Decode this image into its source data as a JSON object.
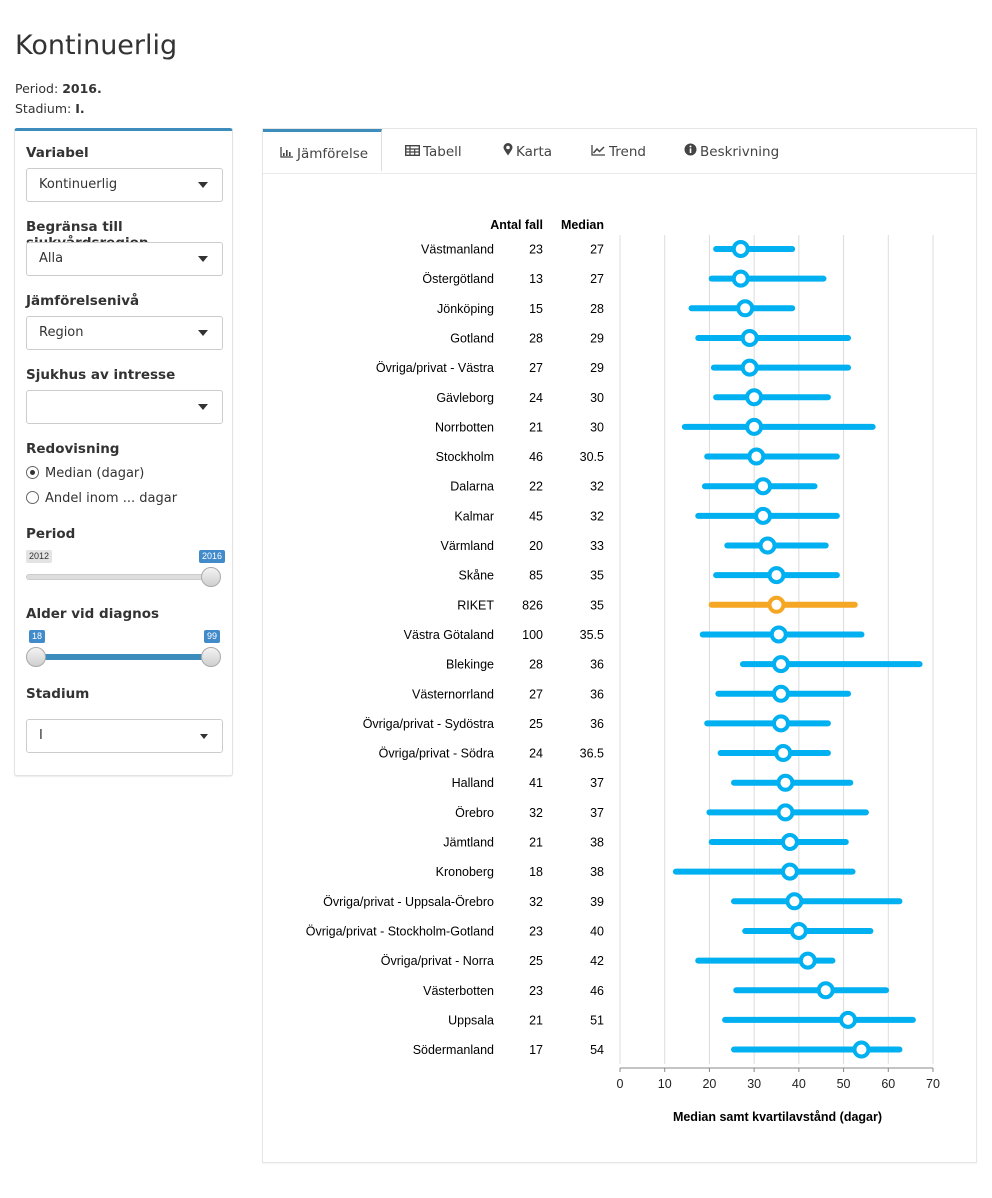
{
  "header": {
    "title": "Kontinuerlig",
    "period_label": "Period:",
    "period_value": "2016.",
    "stadium_label": "Stadium:",
    "stadium_value": "I."
  },
  "sidebar": {
    "variabel_label": "Variabel",
    "variabel_value": "Kontinuerlig",
    "region_label": "Begränsa till sjukvårdsregion",
    "region_value": "Alla",
    "niva_label": "Jämförelsenivå",
    "niva_value": "Region",
    "sjukhus_label": "Sjukhus av intresse",
    "sjukhus_value": "",
    "redovisning_label": "Redovisning",
    "radio_median": "Median (dagar)",
    "radio_andel": "Andel inom ... dagar",
    "period_label": "Period",
    "period_min": "2012",
    "period_max": "2016",
    "period_selected": 2016,
    "alder_label": "Alder vid diagnos",
    "alder_min": "18",
    "alder_max": "99",
    "stadium_label": "Stadium",
    "stadium_value": "I"
  },
  "tabs": [
    {
      "label": "Jämförelse",
      "icon": "bar-chart-icon",
      "glyph": " ▁▃▅"
    },
    {
      "label": "Tabell",
      "icon": "table-icon",
      "glyph": "⊞"
    },
    {
      "label": "Karta",
      "icon": "map-marker-icon",
      "glyph": "◉"
    },
    {
      "label": "Trend",
      "icon": "line-chart-icon",
      "glyph": "↗"
    },
    {
      "label": "Beskrivning",
      "icon": "info-circle-icon",
      "glyph": "ⓘ"
    }
  ],
  "chart_data": {
    "type": "dot-interval",
    "xlabel": "Median samt kvartilavstånd (dagar)",
    "col_header_n": "Antal fall",
    "col_header_median": "Median",
    "xlim": [
      0,
      70
    ],
    "xticks": [
      0,
      10,
      20,
      30,
      40,
      50,
      60,
      70
    ],
    "grid": true,
    "colors": {
      "default": "#00b0f0",
      "highlight": "#f5a623"
    },
    "rows": [
      {
        "label": "Västmanland",
        "n": "23",
        "median": "27",
        "q1": 21.5,
        "q3": 38.5
      },
      {
        "label": "Östergötland",
        "n": "13",
        "median": "27",
        "q1": 20.5,
        "q3": 45.5
      },
      {
        "label": "Jönköping",
        "n": "15",
        "median": "28",
        "q1": 16,
        "q3": 38.5
      },
      {
        "label": "Gotland",
        "n": "28",
        "median": "29",
        "q1": 17.5,
        "q3": 51
      },
      {
        "label": "Övriga/privat - Västra",
        "n": "27",
        "median": "29",
        "q1": 21,
        "q3": 51
      },
      {
        "label": "Gävleborg",
        "n": "24",
        "median": "30",
        "q1": 21.5,
        "q3": 46.5
      },
      {
        "label": "Norrbotten",
        "n": "21",
        "median": "30",
        "q1": 14.5,
        "q3": 56.5
      },
      {
        "label": "Stockholm",
        "n": "46",
        "median": "30.5",
        "q1": 19.5,
        "q3": 48.5
      },
      {
        "label": "Dalarna",
        "n": "22",
        "median": "32",
        "q1": 19,
        "q3": 43.5
      },
      {
        "label": "Kalmar",
        "n": "45",
        "median": "32",
        "q1": 17.5,
        "q3": 48.5
      },
      {
        "label": "Värmland",
        "n": "20",
        "median": "33",
        "q1": 24,
        "q3": 46
      },
      {
        "label": "Skåne",
        "n": "85",
        "median": "35",
        "q1": 21.5,
        "q3": 48.5
      },
      {
        "label": "RIKET",
        "n": "826",
        "median": "35",
        "q1": 20.5,
        "q3": 52.5,
        "highlight": true
      },
      {
        "label": "Västra Götaland",
        "n": "100",
        "median": "35.5",
        "q1": 18.5,
        "q3": 54
      },
      {
        "label": "Blekinge",
        "n": "28",
        "median": "36",
        "q1": 27.5,
        "q3": 67
      },
      {
        "label": "Västernorrland",
        "n": "27",
        "median": "36",
        "q1": 22,
        "q3": 51
      },
      {
        "label": "Övriga/privat - Sydöstra",
        "n": "25",
        "median": "36",
        "q1": 19.5,
        "q3": 46.5
      },
      {
        "label": "Övriga/privat - Södra",
        "n": "24",
        "median": "36.5",
        "q1": 22.5,
        "q3": 46.5
      },
      {
        "label": "Halland",
        "n": "41",
        "median": "37",
        "q1": 25.5,
        "q3": 51.5
      },
      {
        "label": "Örebro",
        "n": "32",
        "median": "37",
        "q1": 20,
        "q3": 55
      },
      {
        "label": "Jämtland",
        "n": "21",
        "median": "38",
        "q1": 20.5,
        "q3": 50.5
      },
      {
        "label": "Kronoberg",
        "n": "18",
        "median": "38",
        "q1": 12.5,
        "q3": 52
      },
      {
        "label": "Övriga/privat - Uppsala-Örebro",
        "n": "32",
        "median": "39",
        "q1": 25.5,
        "q3": 62.5
      },
      {
        "label": "Övriga/privat - Stockholm-Gotland",
        "n": "23",
        "median": "40",
        "q1": 28,
        "q3": 56
      },
      {
        "label": "Övriga/privat - Norra",
        "n": "25",
        "median": "42",
        "q1": 17.5,
        "q3": 47.5
      },
      {
        "label": "Västerbotten",
        "n": "23",
        "median": "46",
        "q1": 26,
        "q3": 59.5
      },
      {
        "label": "Uppsala",
        "n": "21",
        "median": "51",
        "q1": 23.5,
        "q3": 65.5
      },
      {
        "label": "Södermanland",
        "n": "17",
        "median": "54",
        "q1": 25.5,
        "q3": 62.5
      }
    ]
  }
}
